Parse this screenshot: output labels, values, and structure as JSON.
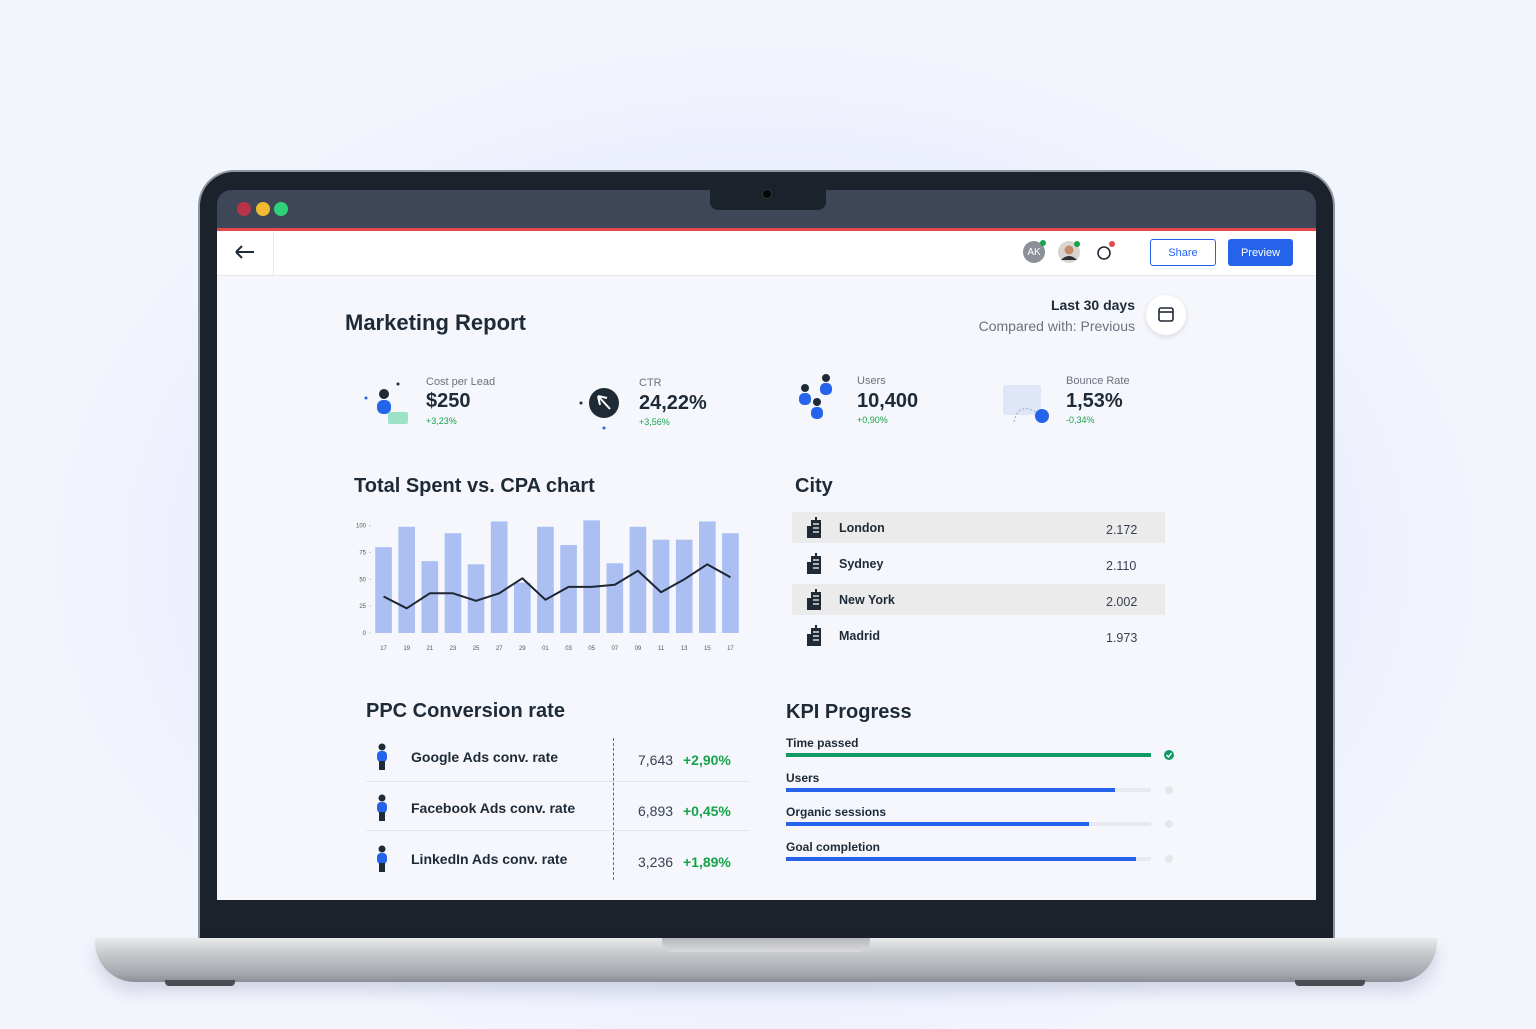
{
  "toolbar": {
    "avatar_initials": "AK",
    "share": "Share",
    "preview": "Preview"
  },
  "report": {
    "title": "Marketing Report",
    "period": "Last 30 days",
    "comparison": "Compared with: Previous"
  },
  "kpis": [
    {
      "label": "Cost per Lead",
      "value": "$250",
      "change": "+3,23%"
    },
    {
      "label": "CTR",
      "value": "24,22%",
      "change": "+3,56%"
    },
    {
      "label": "Users",
      "value": "10,400",
      "change": "+0,90%"
    },
    {
      "label": "Bounce Rate",
      "value": "1,53%",
      "change": "-0,34%"
    }
  ],
  "spend_chart": {
    "type": "bar",
    "title": "Total Spent vs. CPA chart",
    "categories": [
      "17",
      "19",
      "21",
      "23",
      "25",
      "27",
      "29",
      "01",
      "03",
      "05",
      "07",
      "09",
      "11",
      "13",
      "15",
      "17"
    ],
    "series": [
      {
        "type": "bar",
        "color": "#abbff3",
        "values": [
          80,
          99,
          67,
          93,
          64,
          104,
          47,
          99,
          82,
          105,
          65,
          99,
          87,
          87,
          104,
          93
        ]
      },
      {
        "type": "line",
        "color": "#1f2633",
        "values": [
          34,
          23,
          37,
          37,
          30,
          37,
          51,
          31,
          43,
          43,
          45,
          58,
          38,
          50,
          64,
          52
        ]
      }
    ],
    "ylim": [
      0,
      110
    ],
    "yticks": [
      0,
      25,
      50,
      75,
      100
    ]
  },
  "city": {
    "title": "City",
    "rows": [
      {
        "name": "London",
        "value": "2.172"
      },
      {
        "name": "Sydney",
        "value": "2.110"
      },
      {
        "name": "New York",
        "value": "2.002"
      },
      {
        "name": "Madrid",
        "value": "1.973"
      }
    ]
  },
  "ppc": {
    "title": "PPC Conversion rate",
    "rows": [
      {
        "label": "Google Ads conv. rate",
        "value": "7,643",
        "change": "+2,90%"
      },
      {
        "label": "Facebook Ads conv. rate",
        "value": "6,893",
        "change": "+0,45%"
      },
      {
        "label": "LinkedIn Ads conv. rate",
        "value": "3,236",
        "change": "+1,89%"
      }
    ]
  },
  "kpi_progress": {
    "title": "KPI Progress",
    "xlim": [
      0,
      100
    ],
    "items": [
      {
        "label": "Time passed",
        "progress": 100,
        "color": "#119a63"
      },
      {
        "label": "Users",
        "progress": 90,
        "color": "#2563eb"
      },
      {
        "label": "Organic sessions",
        "progress": 83,
        "color": "#2563eb"
      },
      {
        "label": "Goal completion",
        "progress": 96,
        "color": "#2563eb"
      }
    ]
  }
}
